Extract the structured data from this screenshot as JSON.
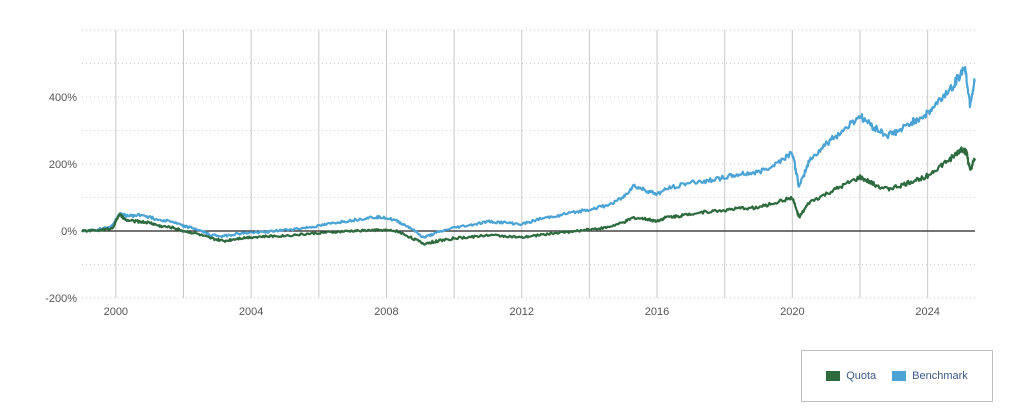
{
  "chart_data": {
    "type": "line",
    "x_unit": "year",
    "xlim": [
      1999.0,
      2025.4
    ],
    "ylim": [
      -200,
      600
    ],
    "x_ticks": [
      "2000",
      "2004",
      "2008",
      "2012",
      "2016",
      "2020",
      "2024"
    ],
    "y_ticks": [
      "-200%",
      "0%",
      "200%",
      "400%"
    ],
    "grid": {
      "horizontal": "dotted",
      "vertical": true
    },
    "legend_position": "bottom-right",
    "series": [
      {
        "name": "Quota",
        "color": "#2d6a3e",
        "points": [
          [
            1999.0,
            0
          ],
          [
            1999.5,
            2
          ],
          [
            1999.9,
            8
          ],
          [
            2000.1,
            50
          ],
          [
            2000.3,
            32
          ],
          [
            2000.7,
            28
          ],
          [
            2001.0,
            25
          ],
          [
            2001.3,
            15
          ],
          [
            2001.7,
            10
          ],
          [
            2002.0,
            0
          ],
          [
            2002.4,
            -8
          ],
          [
            2002.8,
            -22
          ],
          [
            2003.2,
            -30
          ],
          [
            2003.6,
            -22
          ],
          [
            2004.0,
            -18
          ],
          [
            2004.5,
            -16
          ],
          [
            2005.0,
            -14
          ],
          [
            2005.5,
            -10
          ],
          [
            2006.0,
            -6
          ],
          [
            2006.5,
            -3
          ],
          [
            2007.0,
            0
          ],
          [
            2007.5,
            2
          ],
          [
            2007.9,
            3
          ],
          [
            2008.3,
            0
          ],
          [
            2008.7,
            -18
          ],
          [
            2009.1,
            -38
          ],
          [
            2009.5,
            -30
          ],
          [
            2010.0,
            -22
          ],
          [
            2010.5,
            -18
          ],
          [
            2011.0,
            -12
          ],
          [
            2011.5,
            -15
          ],
          [
            2012.0,
            -20
          ],
          [
            2012.5,
            -12
          ],
          [
            2013.0,
            -6
          ],
          [
            2013.5,
            -2
          ],
          [
            2014.0,
            5
          ],
          [
            2014.5,
            10
          ],
          [
            2015.0,
            25
          ],
          [
            2015.3,
            40
          ],
          [
            2015.7,
            35
          ],
          [
            2016.0,
            30
          ],
          [
            2016.3,
            42
          ],
          [
            2016.7,
            45
          ],
          [
            2017.0,
            52
          ],
          [
            2017.5,
            58
          ],
          [
            2018.0,
            62
          ],
          [
            2018.5,
            68
          ],
          [
            2019.0,
            70
          ],
          [
            2019.5,
            85
          ],
          [
            2020.0,
            100
          ],
          [
            2020.2,
            40
          ],
          [
            2020.5,
            85
          ],
          [
            2021.0,
            110
          ],
          [
            2021.5,
            135
          ],
          [
            2022.0,
            160
          ],
          [
            2022.4,
            140
          ],
          [
            2022.8,
            125
          ],
          [
            2023.2,
            135
          ],
          [
            2023.6,
            150
          ],
          [
            2024.0,
            165
          ],
          [
            2024.4,
            195
          ],
          [
            2024.8,
            225
          ],
          [
            2025.0,
            245
          ],
          [
            2025.15,
            235
          ],
          [
            2025.25,
            180
          ],
          [
            2025.4,
            215
          ]
        ]
      },
      {
        "name": "Benchmark",
        "color": "#4aa3d4",
        "points": [
          [
            1999.0,
            0
          ],
          [
            1999.5,
            5
          ],
          [
            1999.9,
            15
          ],
          [
            2000.1,
            50
          ],
          [
            2000.4,
            45
          ],
          [
            2000.8,
            48
          ],
          [
            2001.2,
            35
          ],
          [
            2001.6,
            30
          ],
          [
            2002.0,
            15
          ],
          [
            2002.4,
            5
          ],
          [
            2002.8,
            -12
          ],
          [
            2003.2,
            -15
          ],
          [
            2003.6,
            -8
          ],
          [
            2004.0,
            -5
          ],
          [
            2004.5,
            -2
          ],
          [
            2005.0,
            3
          ],
          [
            2005.5,
            8
          ],
          [
            2006.0,
            15
          ],
          [
            2006.5,
            25
          ],
          [
            2007.0,
            32
          ],
          [
            2007.5,
            40
          ],
          [
            2007.9,
            42
          ],
          [
            2008.3,
            30
          ],
          [
            2008.7,
            10
          ],
          [
            2009.1,
            -20
          ],
          [
            2009.5,
            -5
          ],
          [
            2010.0,
            10
          ],
          [
            2010.5,
            18
          ],
          [
            2011.0,
            28
          ],
          [
            2011.5,
            25
          ],
          [
            2012.0,
            20
          ],
          [
            2012.5,
            35
          ],
          [
            2013.0,
            45
          ],
          [
            2013.5,
            55
          ],
          [
            2014.0,
            65
          ],
          [
            2014.5,
            75
          ],
          [
            2015.0,
            100
          ],
          [
            2015.3,
            135
          ],
          [
            2015.7,
            120
          ],
          [
            2016.0,
            110
          ],
          [
            2016.4,
            130
          ],
          [
            2017.0,
            145
          ],
          [
            2017.5,
            150
          ],
          [
            2018.0,
            160
          ],
          [
            2018.5,
            170
          ],
          [
            2019.0,
            175
          ],
          [
            2019.5,
            200
          ],
          [
            2020.0,
            235
          ],
          [
            2020.2,
            130
          ],
          [
            2020.5,
            210
          ],
          [
            2021.0,
            260
          ],
          [
            2021.5,
            300
          ],
          [
            2022.0,
            345
          ],
          [
            2022.4,
            310
          ],
          [
            2022.8,
            285
          ],
          [
            2023.2,
            300
          ],
          [
            2023.6,
            330
          ],
          [
            2024.0,
            350
          ],
          [
            2024.4,
            395
          ],
          [
            2024.8,
            440
          ],
          [
            2025.1,
            490
          ],
          [
            2025.25,
            380
          ],
          [
            2025.4,
            450
          ]
        ]
      }
    ]
  },
  "legend": {
    "items": [
      {
        "label": "Quota",
        "color": "#2d6a3e"
      },
      {
        "label": "Benchmark",
        "color": "#4aa3d4"
      }
    ]
  }
}
